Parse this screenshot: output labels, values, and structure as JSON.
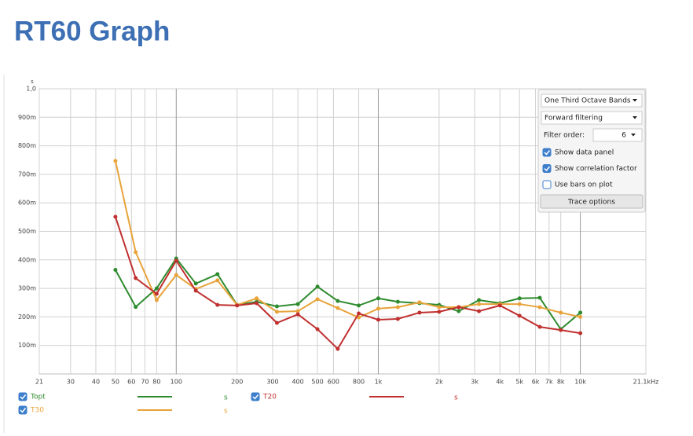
{
  "chart_data": {
    "type": "line",
    "title": "RT60 Graph",
    "y_unit_label": "s",
    "x": [
      50,
      63,
      80,
      100,
      125,
      160,
      200,
      250,
      315,
      400,
      500,
      630,
      800,
      1000,
      1250,
      1600,
      2000,
      2500,
      3150,
      4000,
      5000,
      6300,
      8000,
      10000
    ],
    "series": [
      {
        "name": "Topt",
        "color": "#2e8b2e",
        "values": [
          0.365,
          0.235,
          0.3,
          0.405,
          0.317,
          0.35,
          0.242,
          0.253,
          0.237,
          0.245,
          0.306,
          0.256,
          0.24,
          0.265,
          0.253,
          0.248,
          0.242,
          0.22,
          0.259,
          0.248,
          0.265,
          0.267,
          0.157,
          0.215
        ]
      },
      {
        "name": "T30",
        "color": "#e8a33a",
        "values": [
          0.747,
          0.427,
          0.259,
          0.347,
          0.298,
          0.328,
          0.242,
          0.265,
          0.218,
          0.22,
          0.262,
          0.231,
          0.198,
          0.229,
          0.234,
          0.251,
          0.234,
          0.234,
          0.245,
          0.245,
          0.245,
          0.234,
          0.215,
          0.2
        ]
      },
      {
        "name": "T20",
        "color": "#c0302f",
        "values": [
          0.551,
          0.336,
          0.281,
          0.397,
          0.292,
          0.242,
          0.24,
          0.248,
          0.179,
          0.209,
          0.157,
          0.088,
          0.212,
          0.19,
          0.193,
          0.215,
          0.218,
          0.234,
          0.22,
          0.24,
          0.204,
          0.165,
          0.154,
          0.143
        ]
      }
    ],
    "legend_unit": "s",
    "xlim": [
      21,
      21100
    ],
    "xscale": "log",
    "xticks": [
      21,
      30,
      40,
      50,
      60,
      70,
      80,
      100,
      200,
      300,
      400,
      500,
      600,
      800,
      {
        "value": 1000,
        "label": "1k"
      },
      {
        "value": 2000,
        "label": "2k"
      },
      {
        "value": 3000,
        "label": "3k"
      },
      {
        "value": 4000,
        "label": "4k"
      },
      {
        "value": 5000,
        "label": "5k"
      },
      {
        "value": 6000,
        "label": "6k"
      },
      {
        "value": 7000,
        "label": "7k"
      },
      {
        "value": 8000,
        "label": "8k"
      },
      {
        "value": 10000,
        "label": "10k"
      },
      {
        "value": 21100,
        "label": "21.1kHz"
      }
    ],
    "ylim": [
      0,
      1.0
    ],
    "yticks": [
      {
        "value": 0.1,
        "label": "100m"
      },
      {
        "value": 0.2,
        "label": "200m"
      },
      {
        "value": 0.3,
        "label": "300m"
      },
      {
        "value": 0.4,
        "label": "400m"
      },
      {
        "value": 0.5,
        "label": "500m"
      },
      {
        "value": 0.6,
        "label": "600m"
      },
      {
        "value": 0.7,
        "label": "700m"
      },
      {
        "value": 0.8,
        "label": "800m"
      },
      {
        "value": 0.9,
        "label": "900m"
      },
      {
        "value": 1.0,
        "label": "1,0"
      }
    ],
    "grid": true
  },
  "panel": {
    "band_select": "One Third Octave Bands",
    "filter_select": "Forward filtering",
    "filter_order_label": "Filter order:",
    "filter_order": 6,
    "checkboxes": [
      {
        "label": "Show data panel",
        "checked": true
      },
      {
        "label": "Show correlation factor",
        "checked": true
      },
      {
        "label": "Use bars on plot",
        "checked": false
      }
    ],
    "button": "Trace options"
  }
}
